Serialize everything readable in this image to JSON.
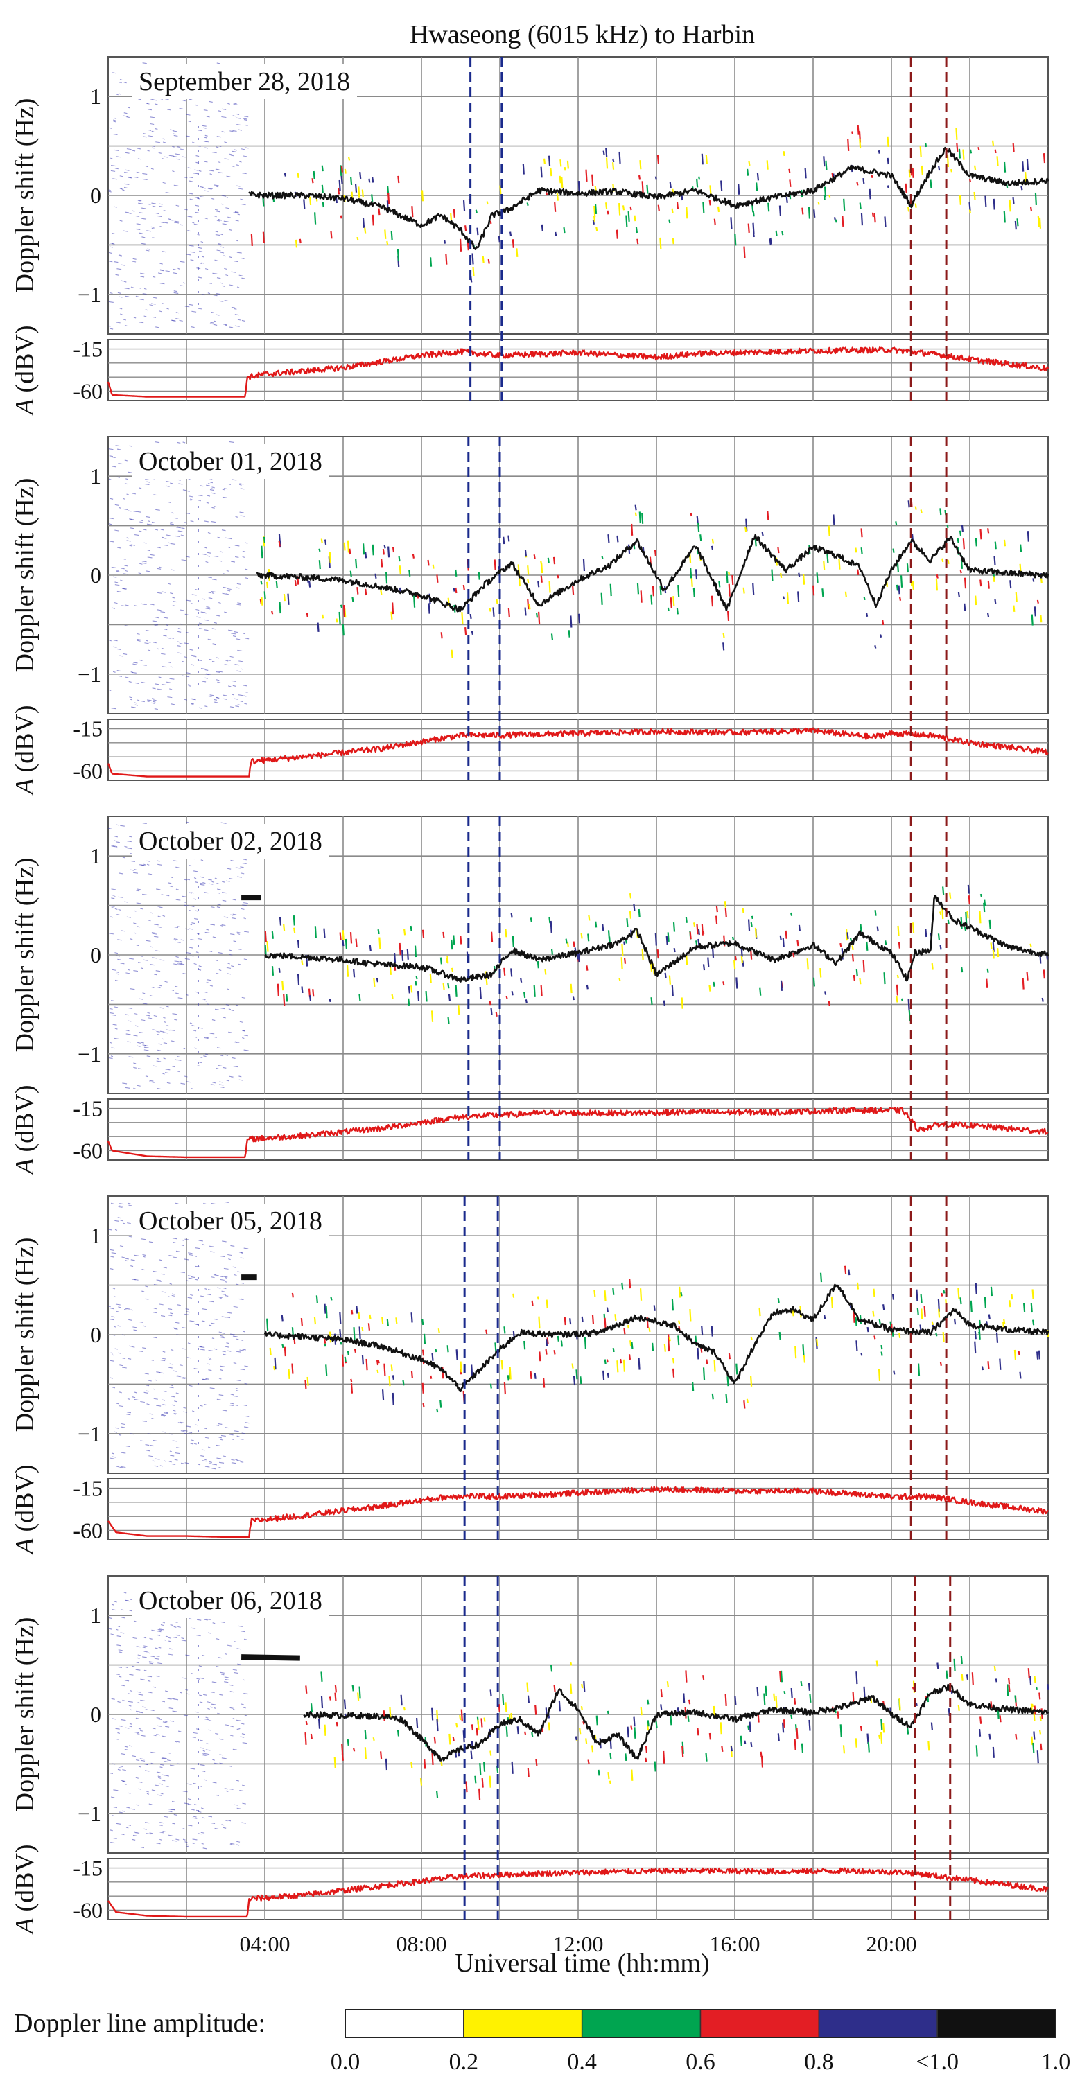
{
  "chart_data": {
    "type": "line",
    "title": "Hwaseong (6015 kHz) to Harbin",
    "xlabel": "Universal time (hh:mm)",
    "ylabel_doppler": "Doppler shift (Hz)",
    "ylabel_amp_symbol": "A",
    "ylabel_amp_unit": "(dBV)",
    "x_range_hours": [
      0,
      24
    ],
    "x_tick_labels": [
      {
        "hour": 4,
        "label": "04:00"
      },
      {
        "hour": 8,
        "label": "08:00"
      },
      {
        "hour": 12,
        "label": "12:00"
      },
      {
        "hour": 16,
        "label": "16:00"
      },
      {
        "hour": 20,
        "label": "20:00"
      }
    ],
    "doppler_ylim": [
      -1.4,
      1.4
    ],
    "doppler_ticks": [
      {
        "v": 1,
        "label": "1"
      },
      {
        "v": 0,
        "label": "0"
      },
      {
        "v": -1,
        "label": "−1"
      }
    ],
    "amp_ylim": [
      -70,
      -5
    ],
    "amp_ticks": [
      {
        "v": -15,
        "label": "-15"
      },
      {
        "v": -60,
        "label": "-60"
      }
    ],
    "colors": {
      "doppler_line": "#111111",
      "amplitude_line": "#e01818",
      "blue_marker": "#1a2a8c",
      "red_marker": "#8c1a1a",
      "early_scatter": "#3c3cb4",
      "grid": "#8a8a8a"
    },
    "panels": [
      {
        "date": "September 28, 2018",
        "blue_markers_h": [
          9.25,
          10.05
        ],
        "red_markers_h": [
          20.5,
          21.4
        ],
        "doppler_start_h": 3.6,
        "doppler": [
          [
            3.6,
            0.01
          ],
          [
            4.0,
            0.0
          ],
          [
            5.0,
            0.0
          ],
          [
            6.0,
            -0.03
          ],
          [
            7.0,
            -0.12
          ],
          [
            8.0,
            -0.3
          ],
          [
            8.5,
            -0.2
          ],
          [
            9.0,
            -0.35
          ],
          [
            9.4,
            -0.55
          ],
          [
            9.8,
            -0.2
          ],
          [
            10.2,
            -0.15
          ],
          [
            11.0,
            0.05
          ],
          [
            12.0,
            0.02
          ],
          [
            13.0,
            0.04
          ],
          [
            14.0,
            -0.02
          ],
          [
            15.0,
            0.05
          ],
          [
            16.0,
            -0.1
          ],
          [
            17.0,
            -0.02
          ],
          [
            18.0,
            0.05
          ],
          [
            19.0,
            0.28
          ],
          [
            20.0,
            0.2
          ],
          [
            20.5,
            -0.1
          ],
          [
            21.0,
            0.25
          ],
          [
            21.4,
            0.48
          ],
          [
            22.0,
            0.2
          ],
          [
            23.0,
            0.12
          ],
          [
            24.0,
            0.15
          ]
        ],
        "amplitude": [
          [
            0.0,
            -50
          ],
          [
            0.1,
            -64
          ],
          [
            1.0,
            -66
          ],
          [
            2.0,
            -66
          ],
          [
            3.0,
            -66
          ],
          [
            3.5,
            -66
          ],
          [
            3.55,
            -45
          ],
          [
            4.0,
            -42
          ],
          [
            6.0,
            -35
          ],
          [
            8.0,
            -22
          ],
          [
            9.0,
            -18
          ],
          [
            10.0,
            -22
          ],
          [
            12.0,
            -19
          ],
          [
            14.0,
            -24
          ],
          [
            15.0,
            -20
          ],
          [
            16.0,
            -19
          ],
          [
            18.0,
            -17
          ],
          [
            20.0,
            -16
          ],
          [
            21.0,
            -20
          ],
          [
            22.0,
            -26
          ],
          [
            24.0,
            -36
          ]
        ]
      },
      {
        "date": "October 01, 2018",
        "blue_markers_h": [
          9.2,
          10.0
        ],
        "red_markers_h": [
          20.5,
          21.4
        ],
        "doppler_start_h": 3.8,
        "doppler": [
          [
            3.8,
            0.0
          ],
          [
            5.0,
            -0.02
          ],
          [
            6.0,
            -0.05
          ],
          [
            7.0,
            -0.12
          ],
          [
            8.0,
            -0.2
          ],
          [
            9.0,
            -0.35
          ],
          [
            9.6,
            -0.1
          ],
          [
            10.3,
            0.12
          ],
          [
            11.0,
            -0.3
          ],
          [
            12.0,
            -0.05
          ],
          [
            12.8,
            0.1
          ],
          [
            13.5,
            0.35
          ],
          [
            14.2,
            -0.15
          ],
          [
            15.0,
            0.3
          ],
          [
            15.8,
            -0.35
          ],
          [
            16.5,
            0.4
          ],
          [
            17.3,
            0.05
          ],
          [
            18.0,
            0.28
          ],
          [
            18.6,
            0.2
          ],
          [
            19.2,
            0.08
          ],
          [
            19.6,
            -0.3
          ],
          [
            20.0,
            0.05
          ],
          [
            20.5,
            0.35
          ],
          [
            21.0,
            0.15
          ],
          [
            21.5,
            0.38
          ],
          [
            22.0,
            0.05
          ],
          [
            23.0,
            0.02
          ],
          [
            24.0,
            0.0
          ]
        ],
        "amplitude": [
          [
            0.0,
            -52
          ],
          [
            0.1,
            -63
          ],
          [
            1.0,
            -66
          ],
          [
            2.0,
            -66
          ],
          [
            3.0,
            -66
          ],
          [
            3.6,
            -66
          ],
          [
            3.65,
            -50
          ],
          [
            5.0,
            -45
          ],
          [
            7.0,
            -36
          ],
          [
            9.0,
            -22
          ],
          [
            10.0,
            -22
          ],
          [
            12.0,
            -20
          ],
          [
            14.0,
            -18
          ],
          [
            16.0,
            -19
          ],
          [
            18.0,
            -17
          ],
          [
            19.5,
            -24
          ],
          [
            20.0,
            -20
          ],
          [
            21.0,
            -22
          ],
          [
            22.0,
            -30
          ],
          [
            24.0,
            -40
          ]
        ]
      },
      {
        "date": "October 02, 2018",
        "blue_markers_h": [
          9.2,
          10.0
        ],
        "red_markers_h": [
          20.5,
          21.4
        ],
        "doppler_start_h": 4.0,
        "early_segment": [
          [
            3.4,
            0.58
          ],
          [
            3.9,
            0.58
          ]
        ],
        "doppler": [
          [
            4.0,
            0.0
          ],
          [
            5.0,
            -0.02
          ],
          [
            6.0,
            -0.05
          ],
          [
            7.0,
            -0.1
          ],
          [
            8.0,
            -0.12
          ],
          [
            9.0,
            -0.25
          ],
          [
            9.8,
            -0.2
          ],
          [
            10.3,
            0.05
          ],
          [
            11.0,
            -0.05
          ],
          [
            12.0,
            0.02
          ],
          [
            13.0,
            0.12
          ],
          [
            13.5,
            0.25
          ],
          [
            14.0,
            -0.2
          ],
          [
            15.0,
            0.08
          ],
          [
            16.0,
            0.12
          ],
          [
            17.0,
            -0.05
          ],
          [
            18.0,
            0.1
          ],
          [
            18.6,
            -0.08
          ],
          [
            19.2,
            0.22
          ],
          [
            20.0,
            0.02
          ],
          [
            20.4,
            -0.25
          ],
          [
            20.6,
            0.02
          ],
          [
            21.0,
            0.05
          ],
          [
            21.1,
            0.6
          ],
          [
            21.6,
            0.35
          ],
          [
            22.0,
            0.28
          ],
          [
            23.0,
            0.08
          ],
          [
            24.0,
            0.0
          ]
        ],
        "amplitude": [
          [
            0.0,
            -50
          ],
          [
            0.1,
            -60
          ],
          [
            1.0,
            -66
          ],
          [
            2.0,
            -67
          ],
          [
            3.0,
            -67
          ],
          [
            3.5,
            -67
          ],
          [
            3.55,
            -48
          ],
          [
            5.0,
            -44
          ],
          [
            7.0,
            -36
          ],
          [
            9.0,
            -24
          ],
          [
            11.0,
            -20
          ],
          [
            13.0,
            -20
          ],
          [
            15.0,
            -19
          ],
          [
            17.0,
            -19
          ],
          [
            19.0,
            -17
          ],
          [
            20.3,
            -17
          ],
          [
            20.7,
            -38
          ],
          [
            21.2,
            -32
          ],
          [
            22.0,
            -33
          ],
          [
            24.0,
            -40
          ]
        ]
      },
      {
        "date": "October 05, 2018",
        "blue_markers_h": [
          9.1,
          9.95
        ],
        "red_markers_h": [
          20.5,
          21.4
        ],
        "doppler_start_h": 4.0,
        "early_segment": [
          [
            3.4,
            0.58
          ],
          [
            3.8,
            0.58
          ]
        ],
        "doppler": [
          [
            4.0,
            0.0
          ],
          [
            5.0,
            -0.02
          ],
          [
            6.0,
            -0.05
          ],
          [
            7.0,
            -0.12
          ],
          [
            8.0,
            -0.25
          ],
          [
            8.5,
            -0.35
          ],
          [
            9.0,
            -0.55
          ],
          [
            9.5,
            -0.35
          ],
          [
            10.0,
            -0.15
          ],
          [
            10.5,
            0.02
          ],
          [
            11.5,
            0.0
          ],
          [
            12.5,
            0.02
          ],
          [
            13.5,
            0.18
          ],
          [
            14.5,
            0.08
          ],
          [
            15.0,
            -0.1
          ],
          [
            15.5,
            -0.18
          ],
          [
            16.0,
            -0.5
          ],
          [
            16.5,
            -0.1
          ],
          [
            17.0,
            0.22
          ],
          [
            17.5,
            0.25
          ],
          [
            18.0,
            0.15
          ],
          [
            18.6,
            0.52
          ],
          [
            19.2,
            0.15
          ],
          [
            20.0,
            0.05
          ],
          [
            21.0,
            0.02
          ],
          [
            21.6,
            0.25
          ],
          [
            22.0,
            0.1
          ],
          [
            23.0,
            0.05
          ],
          [
            24.0,
            0.02
          ]
        ],
        "amplitude": [
          [
            0.0,
            -50
          ],
          [
            0.2,
            -62
          ],
          [
            1.0,
            -66
          ],
          [
            2.0,
            -66
          ],
          [
            3.0,
            -67
          ],
          [
            3.6,
            -67
          ],
          [
            3.65,
            -50
          ],
          [
            5.0,
            -44
          ],
          [
            7.0,
            -34
          ],
          [
            8.5,
            -25
          ],
          [
            9.0,
            -23
          ],
          [
            10.0,
            -24
          ],
          [
            12.0,
            -20
          ],
          [
            14.0,
            -16
          ],
          [
            16.0,
            -18
          ],
          [
            18.0,
            -18
          ],
          [
            20.0,
            -24
          ],
          [
            21.0,
            -24
          ],
          [
            22.0,
            -30
          ],
          [
            24.0,
            -40
          ]
        ]
      },
      {
        "date": "October 06, 2018",
        "blue_markers_h": [
          9.1,
          9.95
        ],
        "red_markers_h": [
          20.6,
          21.5
        ],
        "doppler_start_h": 5.0,
        "early_segment": [
          [
            3.4,
            0.58
          ],
          [
            4.9,
            0.57
          ]
        ],
        "doppler": [
          [
            5.0,
            0.0
          ],
          [
            6.0,
            -0.01
          ],
          [
            7.0,
            -0.02
          ],
          [
            7.5,
            -0.05
          ],
          [
            8.0,
            -0.25
          ],
          [
            8.5,
            -0.45
          ],
          [
            9.0,
            -0.35
          ],
          [
            9.5,
            -0.3
          ],
          [
            10.0,
            -0.1
          ],
          [
            10.5,
            -0.05
          ],
          [
            11.0,
            -0.2
          ],
          [
            11.5,
            0.25
          ],
          [
            12.0,
            0.05
          ],
          [
            12.5,
            -0.3
          ],
          [
            13.0,
            -0.2
          ],
          [
            13.5,
            -0.45
          ],
          [
            14.0,
            0.0
          ],
          [
            15.0,
            0.02
          ],
          [
            16.0,
            -0.05
          ],
          [
            17.0,
            0.05
          ],
          [
            18.0,
            0.02
          ],
          [
            19.0,
            0.1
          ],
          [
            19.5,
            0.18
          ],
          [
            20.0,
            0.0
          ],
          [
            20.5,
            -0.12
          ],
          [
            21.0,
            0.22
          ],
          [
            21.5,
            0.28
          ],
          [
            22.0,
            0.1
          ],
          [
            23.0,
            0.05
          ],
          [
            24.0,
            0.02
          ]
        ],
        "amplitude": [
          [
            0.0,
            -50
          ],
          [
            0.2,
            -62
          ],
          [
            1.0,
            -66
          ],
          [
            2.0,
            -67
          ],
          [
            3.0,
            -67
          ],
          [
            3.55,
            -67
          ],
          [
            3.6,
            -48
          ],
          [
            5.0,
            -44
          ],
          [
            7.0,
            -34
          ],
          [
            9.0,
            -24
          ],
          [
            11.0,
            -21
          ],
          [
            13.0,
            -19
          ],
          [
            15.0,
            -18
          ],
          [
            17.0,
            -19
          ],
          [
            19.0,
            -18
          ],
          [
            20.5,
            -20
          ],
          [
            22.0,
            -28
          ],
          [
            24.0,
            -38
          ]
        ]
      }
    ],
    "legend": {
      "title": "Doppler line amplitude:",
      "ticks": [
        "0.0",
        "0.2",
        "0.4",
        "0.6",
        "0.8",
        "<1.0",
        "1.0"
      ],
      "colors": [
        "#ffffff",
        "#fff200",
        "#00a550",
        "#e31e24",
        "#2e2e8a",
        "#111111"
      ]
    }
  }
}
